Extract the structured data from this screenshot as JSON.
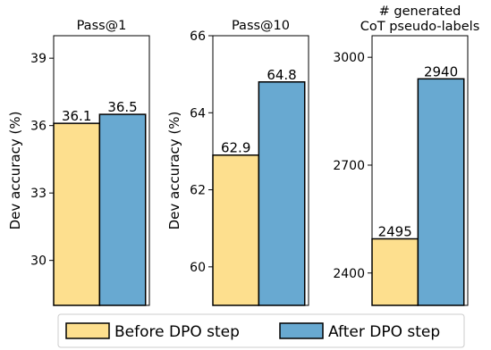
{
  "chart_data": [
    {
      "type": "bar",
      "title": "Pass@1",
      "ylabel": "Dev accuracy (%)",
      "ylim": [
        28,
        40
      ],
      "yticks": [
        30,
        33,
        36,
        39
      ],
      "series": [
        {
          "name": "Before DPO step",
          "value": 36.1,
          "label": "36.1"
        },
        {
          "name": "After DPO step",
          "value": 36.5,
          "label": "36.5"
        }
      ]
    },
    {
      "type": "bar",
      "title": "Pass@10",
      "ylabel": "Dev accuracy (%)",
      "ylim": [
        59,
        66
      ],
      "yticks": [
        60,
        62,
        64,
        66
      ],
      "series": [
        {
          "name": "Before DPO step",
          "value": 62.9,
          "label": "62.9"
        },
        {
          "name": "After DPO step",
          "value": 64.8,
          "label": "64.8"
        }
      ]
    },
    {
      "type": "bar",
      "title": [
        "# generated",
        "CoT pseudo-labels"
      ],
      "ylabel": "",
      "ylim": [
        2310,
        3060
      ],
      "yticks": [
        2400,
        2700,
        3000
      ],
      "series": [
        {
          "name": "Before DPO step",
          "value": 2495,
          "label": "2495"
        },
        {
          "name": "After DPO step",
          "value": 2940,
          "label": "2940"
        }
      ]
    }
  ],
  "legend": {
    "position": "bottom",
    "items": [
      {
        "label": "Before DPO step",
        "color": "#fddf8e"
      },
      {
        "label": "After DPO step",
        "color": "#68a9d1"
      }
    ]
  },
  "colors": {
    "before": "#fddf8e",
    "after": "#68a9d1",
    "edge": "#000000"
  }
}
